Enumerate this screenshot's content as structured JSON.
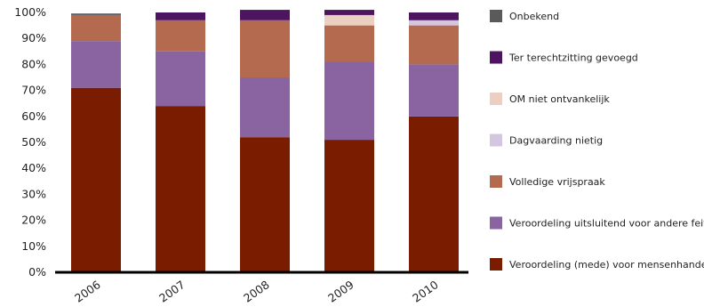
{
  "chart_data": {
    "type": "bar",
    "stacked": true,
    "categories": [
      "2006",
      "2007",
      "2008",
      "2009",
      "2010"
    ],
    "y_ticks": [
      "0%",
      "10%",
      "20%",
      "30%",
      "40%",
      "50%",
      "60%",
      "70%",
      "80%",
      "90%",
      "100%"
    ],
    "ylim": [
      0,
      100
    ],
    "grid": false,
    "legend_position": "right",
    "series": [
      {
        "name": "Veroordeling (mede) voor mensenhandel",
        "color": "#7a1c00",
        "values": [
          71,
          64,
          52,
          51,
          60
        ]
      },
      {
        "name": "Veroordeling uitsluitend voor andere feiten",
        "color": "#8a64a0",
        "values": [
          18,
          21,
          23,
          30,
          20
        ]
      },
      {
        "name": "Volledige vrijspraak",
        "color": "#b36a4e",
        "values": [
          10,
          12,
          22,
          14,
          15
        ]
      },
      {
        "name": "Dagvaarding nietig",
        "color": "#d4c6de",
        "values": [
          0,
          0,
          0,
          0,
          2
        ]
      },
      {
        "name": "OM niet ontvankelijk",
        "color": "#ebcfc0",
        "values": [
          0,
          0,
          0,
          4,
          0
        ]
      },
      {
        "name": "Ter terechtzitting gevoegd",
        "color": "#4d1460",
        "values": [
          0,
          3,
          4,
          2,
          3
        ]
      },
      {
        "name": "Onbekend",
        "color": "#5a5a5a",
        "values": [
          0.6,
          0,
          0,
          0,
          0
        ]
      }
    ]
  }
}
